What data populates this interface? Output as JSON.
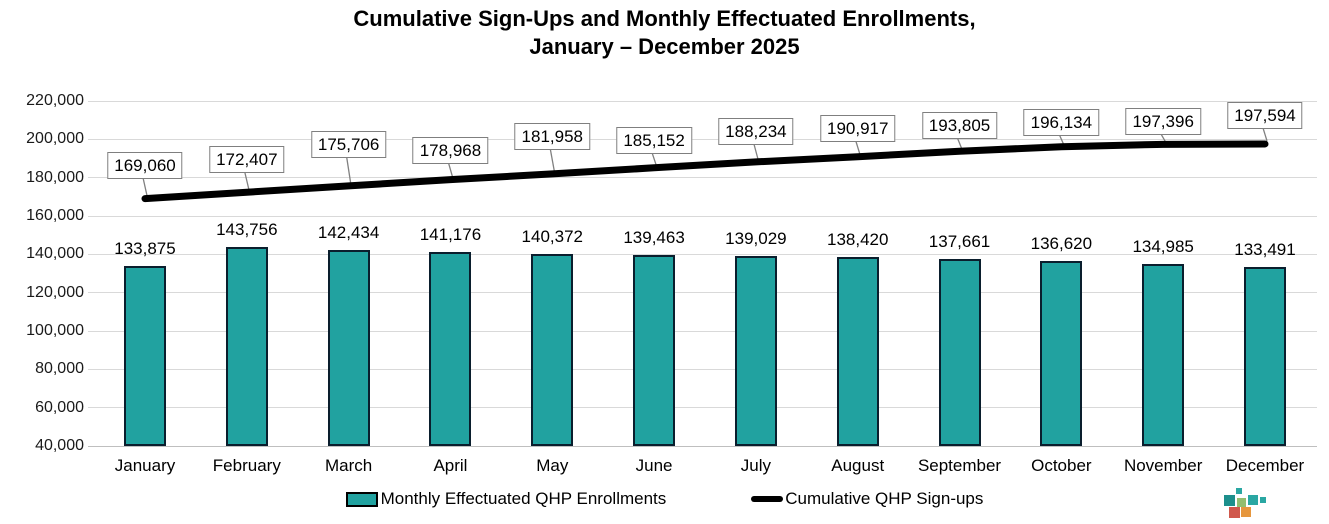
{
  "title": {
    "line1": "Cumulative Sign-Ups and Monthly Effectuated Enrollments,",
    "line2": "January – December 2025"
  },
  "colors": {
    "bar_fill": "#21A2A0",
    "bar_border": "#0A1E2D",
    "line": "#000000",
    "gridline": "#D9D9D9",
    "baseline": "#BFBFBF",
    "label_box_border": "#7F7F7F",
    "leader_line": "#808080"
  },
  "chart_data": {
    "type": "bar",
    "title": "Cumulative Sign-Ups and Monthly Effectuated Enrollments, January – December 2025",
    "categories": [
      "January",
      "February",
      "March",
      "April",
      "May",
      "June",
      "July",
      "August",
      "September",
      "October",
      "November",
      "December"
    ],
    "series": [
      {
        "name": "Monthly Effectuated QHP Enrollments",
        "type": "bar",
        "values": [
          133875,
          143756,
          142434,
          141176,
          140372,
          139463,
          139029,
          138420,
          137661,
          136620,
          134985,
          133491
        ],
        "labels": [
          "133,875",
          "143,756",
          "142,434",
          "141,176",
          "140,372",
          "139,463",
          "139,029",
          "138,420",
          "137,661",
          "136,620",
          "134,985",
          "133,491"
        ]
      },
      {
        "name": "Cumulative QHP Sign-ups",
        "type": "line",
        "values": [
          169060,
          172407,
          175706,
          178968,
          181958,
          185152,
          188234,
          190917,
          193805,
          196134,
          197396,
          197594
        ],
        "labels": [
          "169,060",
          "172,407",
          "175,706",
          "178,968",
          "181,958",
          "185,152",
          "188,234",
          "190,917",
          "193,805",
          "196,134",
          "197,396",
          "197,594"
        ]
      }
    ],
    "xlabel": "",
    "ylabel": "",
    "ylim": [
      40000,
      220000
    ],
    "grid": true,
    "legend_position": "bottom",
    "y_ticks": [
      {
        "value": 220000,
        "label": "220,000"
      },
      {
        "value": 200000,
        "label": "200,000"
      },
      {
        "value": 180000,
        "label": "180,000"
      },
      {
        "value": 160000,
        "label": "160,000"
      },
      {
        "value": 140000,
        "label": "140,000"
      },
      {
        "value": 120000,
        "label": "120,000"
      },
      {
        "value": 100000,
        "label": "100,000"
      },
      {
        "value": 80000,
        "label": "80,000"
      },
      {
        "value": 60000,
        "label": "60,000"
      },
      {
        "value": 40000,
        "label": "40,000"
      }
    ]
  },
  "logo": {
    "name": "colored-squares-logo",
    "colors": [
      "#2AA7A3",
      "#1D8F8C",
      "#93BE6F",
      "#2AA7A3",
      "#2AA7A3",
      "#D0584C",
      "#E6973E"
    ]
  }
}
